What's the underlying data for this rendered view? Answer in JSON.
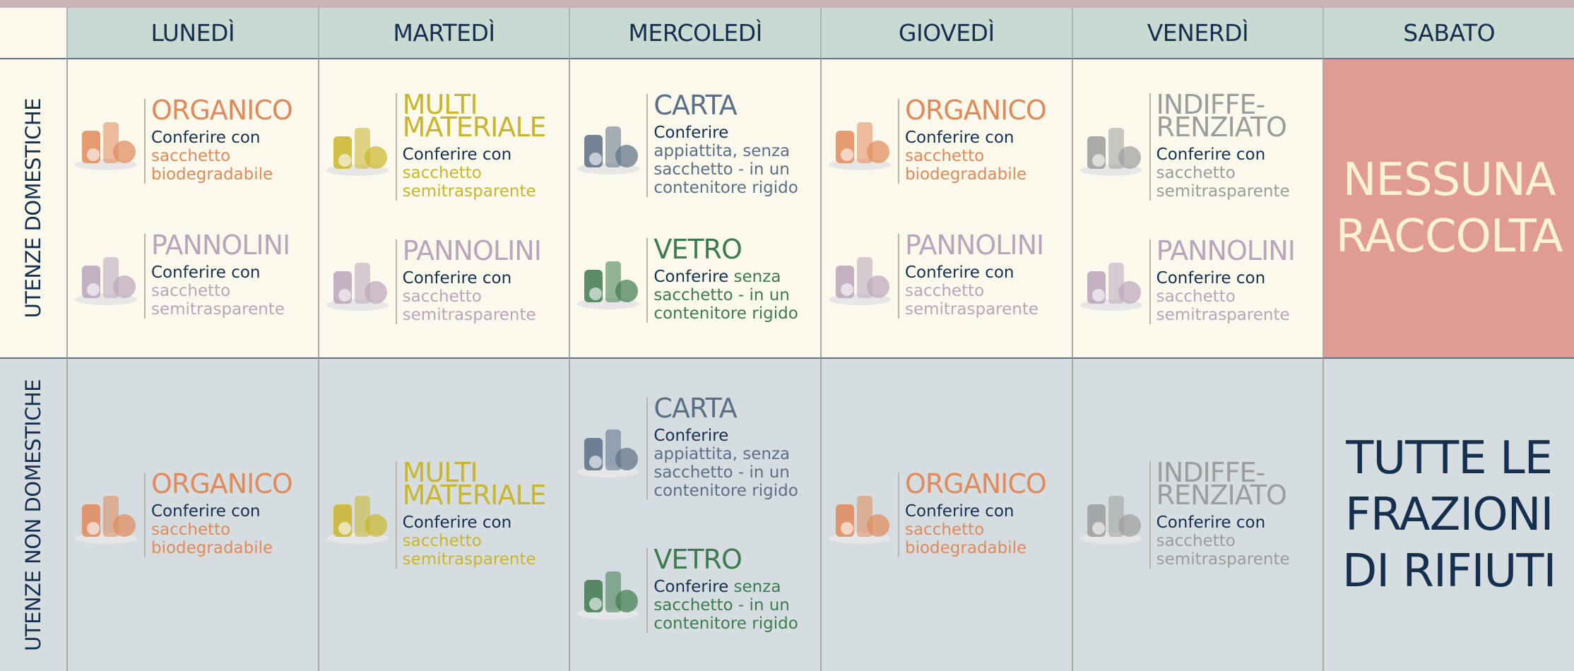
{
  "header": {
    "days": [
      "LUNEDÌ",
      "MARTEDÌ",
      "MERCOLEDÌ",
      "GIOVEDÌ",
      "VENERDÌ",
      "SABATO"
    ]
  },
  "rows": [
    {
      "label": "UTENZE DOMESTICHE",
      "cells": [
        {
          "items": [
            {
              "name": "ORGANICO",
              "instruction": "Conferire con",
              "detail": "sacchetto biodegradabile",
              "color": "#e0895a"
            },
            {
              "name": "PANNOLINI",
              "instruction": "Conferire con",
              "detail": "sacchetto semitrasparente",
              "color": "#b9a5bb"
            }
          ]
        },
        {
          "items": [
            {
              "name": "MULTI\nMATERIALE",
              "instruction": "Conferire con",
              "detail": "sacchetto semitrasparente",
              "color": "#c9b52a"
            },
            {
              "name": "PANNOLINI",
              "instruction": "Conferire con",
              "detail": "sacchetto semitrasparente",
              "color": "#b9a5bb"
            }
          ]
        },
        {
          "items": [
            {
              "name": "CARTA",
              "instruction": "Conferire",
              "detail": "appiattita, senza sacchetto - in un contenitore rigido",
              "color": "#5b6f86"
            },
            {
              "name": "VETRO",
              "instruction": "Conferire",
              "detail": "senza sacchetto - in un contenitore rigido",
              "color": "#3e7a4f"
            }
          ]
        },
        {
          "items": [
            {
              "name": "ORGANICO",
              "instruction": "Conferire con",
              "detail": "sacchetto biodegradabile",
              "color": "#e0895a"
            },
            {
              "name": "PANNOLINI",
              "instruction": "Conferire con",
              "detail": "sacchetto semitrasparente",
              "color": "#b9a5bb"
            }
          ]
        },
        {
          "items": [
            {
              "name": "INDIFFE-\nRENZIATO",
              "instruction": "Conferire con",
              "detail": "sacchetto semitrasparente",
              "color": "#9c9c9c"
            },
            {
              "name": "PANNOLINI",
              "instruction": "Conferire con",
              "detail": "sacchetto semitrasparente",
              "color": "#b9a5bb"
            }
          ]
        }
      ],
      "saturday": "NESSUNA\nRACCOLTA"
    },
    {
      "label": "UTENZE NON DOMESTICHE",
      "cells": [
        {
          "items": [
            {
              "name": "ORGANICO",
              "instruction": "Conferire con",
              "detail": "sacchetto biodegradabile",
              "color": "#e0895a"
            }
          ]
        },
        {
          "items": [
            {
              "name": "MULTI\nMATERIALE",
              "instruction": "Conferire con",
              "detail": "sacchetto semitrasparente",
              "color": "#c9b52a"
            }
          ]
        },
        {
          "items": [
            {
              "name": "CARTA",
              "instruction": "Conferire",
              "detail": "appiattita, senza sacchetto - in un contenitore rigido",
              "color": "#5b6f86"
            },
            {
              "name": "VETRO",
              "instruction": "Conferire",
              "detail": "senza sacchetto - in un contenitore rigido",
              "color": "#3e7a4f"
            }
          ]
        },
        {
          "items": [
            {
              "name": "ORGANICO",
              "instruction": "Conferire con",
              "detail": "sacchetto biodegradabile",
              "color": "#e0895a"
            }
          ]
        },
        {
          "items": [
            {
              "name": "INDIFFE-\nRENZIATO",
              "instruction": "Conferire con",
              "detail": "sacchetto semitrasparente",
              "color": "#9c9c9c"
            }
          ]
        }
      ],
      "saturday": "TUTTE LE\nFRAZIONI\nDI RIFIUTI"
    }
  ]
}
